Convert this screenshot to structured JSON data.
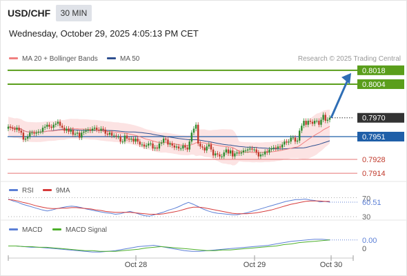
{
  "header": {
    "symbol": "USD/CHF",
    "timeframe": "30 MIN",
    "datetime": "Wednesday, October 29, 2025 4:05:13 PM CET",
    "credit": "Research © 2025 Trading Central"
  },
  "legends": {
    "ma20": "MA 20 + Bollinger Bands",
    "ma50": "MA 50",
    "rsi": "RSI",
    "rsi_ma": "9MA",
    "macd": "MACD",
    "macd_signal": "MACD Signal"
  },
  "colors": {
    "ma20": "#f08080",
    "bollinger_fill": "#fbdada",
    "ma50": "#2e4f8f",
    "up_candle": "#2d8a2d",
    "down_candle": "#c0392b",
    "green_level": "#5a9e1b",
    "blue_level": "#1f5fa8",
    "red_level": "#e57373",
    "current_price": "#333333",
    "arrow": "#2f6eb5",
    "rsi": "#5b7fd6",
    "rsi_ma": "#d63a3a",
    "macd": "#5b7fd6",
    "macd_signal": "#4caf2a"
  },
  "chart_data": [
    {
      "type": "candlestick",
      "title": "USD/CHF 30 MIN",
      "x_tick_labels": [
        "Oct 28",
        "Oct 29",
        "Oct 30"
      ],
      "ylim": [
        0.7895,
        0.803
      ],
      "levels": [
        {
          "value": 0.8018,
          "label": "0.8018",
          "kind": "resistance"
        },
        {
          "value": 0.8004,
          "label": "0.8004",
          "kind": "resistance"
        },
        {
          "value": 0.797,
          "label": "0.7970",
          "kind": "current"
        },
        {
          "value": 0.7951,
          "label": "0.7951",
          "kind": "pivot"
        },
        {
          "value": 0.7928,
          "label": "0.7928",
          "kind": "support"
        },
        {
          "value": 0.7914,
          "label": "0.7914",
          "kind": "support"
        }
      ],
      "close": [
        0.7961,
        0.796,
        0.7959,
        0.7958,
        0.796,
        0.7957,
        0.7955,
        0.7948,
        0.7949,
        0.7951,
        0.7955,
        0.7955,
        0.7954,
        0.7955,
        0.7956,
        0.7956,
        0.796,
        0.7961,
        0.7963,
        0.7961,
        0.796,
        0.7963,
        0.7964,
        0.7966,
        0.7962,
        0.796,
        0.7957,
        0.7959,
        0.7956,
        0.7958,
        0.7953,
        0.7954,
        0.7955,
        0.795,
        0.7955,
        0.7956,
        0.7957,
        0.7958,
        0.7957,
        0.7959,
        0.796,
        0.7958,
        0.7957,
        0.7959,
        0.7958,
        0.7954,
        0.7953,
        0.7955,
        0.7952,
        0.7952,
        0.7951,
        0.7951,
        0.7946,
        0.7946,
        0.7952,
        0.7949,
        0.7948,
        0.7949,
        0.7946,
        0.7949,
        0.7946,
        0.7943,
        0.7943,
        0.7941,
        0.7942,
        0.7944,
        0.7944,
        0.7939,
        0.794,
        0.7939,
        0.7944,
        0.7945,
        0.7949,
        0.7948,
        0.7943,
        0.7944,
        0.7942,
        0.794,
        0.7941,
        0.7939,
        0.7939,
        0.7942,
        0.794,
        0.7938,
        0.7946,
        0.7955,
        0.7959,
        0.7963,
        0.7944,
        0.7941,
        0.794,
        0.7937,
        0.7941,
        0.7943,
        0.7938,
        0.7932,
        0.7934,
        0.7933,
        0.7931,
        0.7931,
        0.7935,
        0.7938,
        0.7934,
        0.7937,
        0.7931,
        0.7934,
        0.7935,
        0.7934,
        0.7935,
        0.7937,
        0.7937,
        0.7938,
        0.7939,
        0.7938,
        0.7938,
        0.7935,
        0.7931,
        0.7933,
        0.7933,
        0.7936,
        0.7935,
        0.7938,
        0.7939,
        0.794,
        0.7939,
        0.7941,
        0.794,
        0.7943,
        0.7946,
        0.7945,
        0.7946,
        0.795,
        0.795,
        0.7946,
        0.7947,
        0.7957,
        0.7962,
        0.7967,
        0.7963,
        0.7967,
        0.7966,
        0.7964,
        0.7967,
        0.7967,
        0.7963,
        0.7968,
        0.7973,
        0.7967,
        0.7968,
        0.797
      ]
    },
    {
      "type": "line",
      "title": "RSI",
      "x_tick_labels": [
        "Oct 28",
        "Oct 29",
        "Oct 30"
      ],
      "ylim": [
        27,
        75
      ],
      "reference_levels": [
        70,
        30
      ],
      "series": [
        {
          "name": "RSI",
          "values": [
            67,
            63,
            60,
            56,
            53,
            50,
            47,
            44,
            42,
            44,
            47,
            49,
            51,
            52,
            51,
            49,
            46,
            44,
            42,
            40,
            38,
            37,
            35,
            36,
            39,
            41,
            38,
            35,
            32,
            31,
            34,
            37,
            40,
            44,
            47,
            51,
            56,
            60,
            56,
            51,
            46,
            42,
            39,
            37,
            36,
            35,
            34,
            34,
            36,
            38,
            41,
            44,
            47,
            50,
            53,
            56,
            59,
            62,
            64,
            66,
            66,
            67,
            65,
            64,
            61,
            62,
            60.51
          ]
        },
        {
          "name": "9MA",
          "values": [
            66,
            65,
            63,
            60,
            58,
            55,
            52,
            50,
            48,
            47,
            47,
            48,
            48,
            49,
            49,
            48,
            47,
            46,
            44,
            43,
            41,
            40,
            39,
            39,
            39,
            39,
            38,
            37,
            36,
            35,
            35,
            35,
            36,
            38,
            40,
            42,
            45,
            48,
            50,
            50,
            49,
            47,
            45,
            43,
            41,
            39,
            37,
            36,
            36,
            36,
            37,
            38,
            40,
            42,
            44,
            47,
            50,
            53,
            56,
            58,
            60,
            62,
            63,
            63,
            63,
            62,
            62
          ]
        }
      ]
    },
    {
      "type": "line",
      "title": "MACD",
      "x_tick_labels": [
        "Oct 28",
        "Oct 29",
        "Oct 30"
      ],
      "ylim": [
        -0.0012,
        0.0019
      ],
      "reference_levels": [
        0
      ],
      "value_labels": [
        "0.00",
        "0"
      ],
      "series": [
        {
          "name": "MACD",
          "values": [
            0.0002,
            0.0002,
            0.0001,
            0.0,
            0.0,
            -0.0001,
            -0.0002,
            -0.0003,
            -0.0004,
            -0.0005,
            -0.0006,
            -0.0007,
            -0.0007,
            -0.0006,
            -0.0005,
            -0.0003,
            -0.0001,
            0.0001,
            0.0002,
            0.0003,
            0.0001,
            -0.0001,
            -0.0003,
            -0.0005,
            -0.0006,
            -0.0006,
            -0.0005,
            -0.0004,
            -0.0003,
            -0.0002,
            -0.0001,
            0.0,
            0.0001,
            0.0002,
            0.0003,
            0.0005,
            0.0007,
            0.0009,
            0.001,
            0.0011,
            0.0012,
            0.0012,
            0.0011
          ]
        },
        {
          "name": "MACD Signal",
          "values": [
            0.0002,
            0.0002,
            0.0001,
            0.0001,
            0.0,
            0.0,
            -0.0001,
            -0.0002,
            -0.0003,
            -0.0004,
            -0.0005,
            -0.0005,
            -0.0006,
            -0.0006,
            -0.0006,
            -0.0005,
            -0.0004,
            -0.0003,
            -0.0001,
            0.0,
            0.0001,
            0.0,
            -0.0001,
            -0.0002,
            -0.0003,
            -0.0004,
            -0.0005,
            -0.0005,
            -0.0004,
            -0.0004,
            -0.0003,
            -0.0002,
            -0.0001,
            0.0,
            0.0001,
            0.0002,
            0.0004,
            0.0005,
            0.0007,
            0.0008,
            0.0009,
            0.001,
            0.0011
          ]
        }
      ]
    }
  ]
}
